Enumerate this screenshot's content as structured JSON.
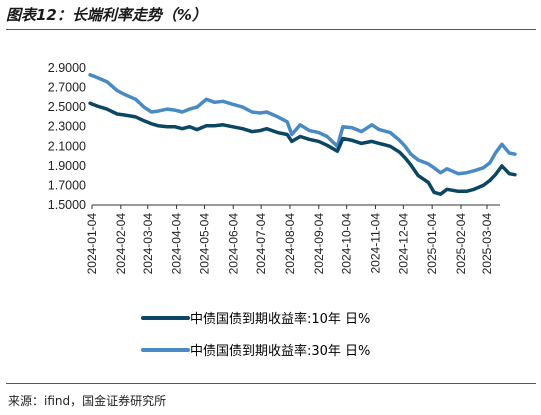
{
  "title": "图表12：长端利率走势（%）",
  "source": "来源：ifind，国金证券研究所",
  "colors": {
    "series_10y": "#0b4763",
    "series_30y": "#4a8ac4"
  },
  "chart_data": {
    "type": "line",
    "title": "",
    "xlabel": "",
    "ylabel": "",
    "ylim": [
      1.5,
      2.9
    ],
    "y_ticks": [
      "2.9000",
      "2.7000",
      "2.5000",
      "2.3000",
      "2.1000",
      "1.9000",
      "1.7000",
      "1.5000"
    ],
    "x_ticks": [
      "2024-01-04",
      "2024-02-04",
      "2024-03-04",
      "2024-04-04",
      "2024-05-04",
      "2024-06-04",
      "2024-07-04",
      "2024-08-04",
      "2024-09-04",
      "2024-10-04",
      "2024-11-04",
      "2024-12-04",
      "2025-01-04",
      "2025-02-04",
      "2025-03-04"
    ],
    "legend_position": "bottom",
    "grid": false,
    "series": [
      {
        "name": "中债国债到期收益率:10年 日%",
        "x": [
          "2024-01-02",
          "2024-01-10",
          "2024-01-20",
          "2024-01-31",
          "2024-02-08",
          "2024-02-20",
          "2024-02-29",
          "2024-03-08",
          "2024-03-15",
          "2024-03-25",
          "2024-04-02",
          "2024-04-10",
          "2024-04-18",
          "2024-04-26",
          "2024-05-06",
          "2024-05-15",
          "2024-05-24",
          "2024-06-03",
          "2024-06-14",
          "2024-06-24",
          "2024-07-03",
          "2024-07-10",
          "2024-07-22",
          "2024-08-01",
          "2024-08-06",
          "2024-08-15",
          "2024-08-25",
          "2024-09-04",
          "2024-09-13",
          "2024-09-24",
          "2024-09-30",
          "2024-10-10",
          "2024-10-20",
          "2024-10-31",
          "2024-11-08",
          "2024-11-20",
          "2024-11-30",
          "2024-12-06",
          "2024-12-12",
          "2024-12-20",
          "2024-12-31",
          "2025-01-06",
          "2025-01-13",
          "2025-01-20",
          "2025-02-01",
          "2025-02-10",
          "2025-02-18",
          "2025-02-28",
          "2025-03-07",
          "2025-03-13",
          "2025-03-20",
          "2025-03-28",
          "2025-04-03"
        ],
        "y": [
          2.54,
          2.51,
          2.48,
          2.43,
          2.42,
          2.4,
          2.36,
          2.33,
          2.31,
          2.3,
          2.3,
          2.28,
          2.3,
          2.27,
          2.31,
          2.31,
          2.32,
          2.3,
          2.28,
          2.25,
          2.26,
          2.28,
          2.24,
          2.22,
          2.15,
          2.2,
          2.17,
          2.15,
          2.11,
          2.05,
          2.18,
          2.16,
          2.13,
          2.15,
          2.13,
          2.1,
          2.04,
          1.98,
          1.91,
          1.8,
          1.73,
          1.63,
          1.61,
          1.66,
          1.64,
          1.64,
          1.66,
          1.7,
          1.75,
          1.81,
          1.9,
          1.82,
          1.81
        ]
      },
      {
        "name": "中债国债到期收益率:30年 日%",
        "x": [
          "2024-01-02",
          "2024-01-10",
          "2024-01-20",
          "2024-01-31",
          "2024-02-08",
          "2024-02-20",
          "2024-02-29",
          "2024-03-08",
          "2024-03-15",
          "2024-03-25",
          "2024-04-02",
          "2024-04-10",
          "2024-04-18",
          "2024-04-26",
          "2024-05-06",
          "2024-05-15",
          "2024-05-24",
          "2024-06-03",
          "2024-06-14",
          "2024-06-24",
          "2024-07-03",
          "2024-07-10",
          "2024-07-22",
          "2024-08-01",
          "2024-08-06",
          "2024-08-15",
          "2024-08-25",
          "2024-09-04",
          "2024-09-13",
          "2024-09-24",
          "2024-09-30",
          "2024-10-10",
          "2024-10-20",
          "2024-10-31",
          "2024-11-08",
          "2024-11-20",
          "2024-11-30",
          "2024-12-06",
          "2024-12-12",
          "2024-12-20",
          "2024-12-31",
          "2025-01-06",
          "2025-01-13",
          "2025-01-20",
          "2025-02-01",
          "2025-02-10",
          "2025-02-18",
          "2025-02-28",
          "2025-03-07",
          "2025-03-13",
          "2025-03-20",
          "2025-03-28",
          "2025-04-03"
        ],
        "y": [
          2.83,
          2.8,
          2.76,
          2.67,
          2.63,
          2.58,
          2.5,
          2.45,
          2.46,
          2.48,
          2.47,
          2.45,
          2.48,
          2.5,
          2.58,
          2.55,
          2.56,
          2.53,
          2.5,
          2.45,
          2.44,
          2.45,
          2.4,
          2.35,
          2.22,
          2.32,
          2.26,
          2.24,
          2.2,
          2.1,
          2.3,
          2.29,
          2.25,
          2.32,
          2.27,
          2.24,
          2.16,
          2.1,
          2.02,
          1.96,
          1.92,
          1.88,
          1.83,
          1.87,
          1.82,
          1.83,
          1.85,
          1.88,
          1.93,
          2.03,
          2.12,
          2.03,
          2.02
        ]
      }
    ]
  }
}
